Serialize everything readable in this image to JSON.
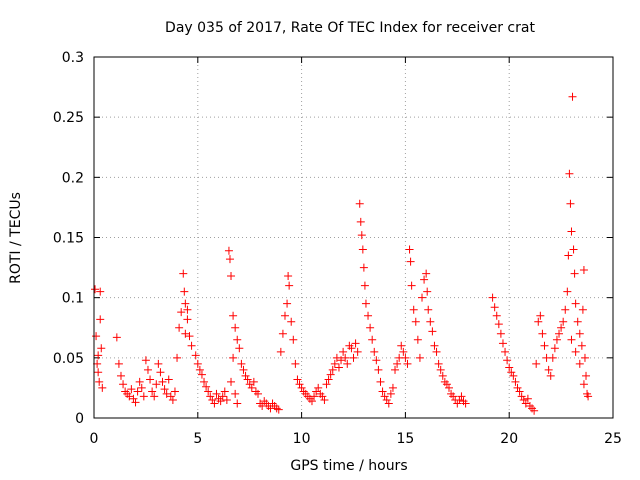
{
  "chart_data": {
    "type": "scatter",
    "title": "Day 035 of 2017, Rate Of TEC Index for receiver crat",
    "xlabel": "GPS time / hours",
    "ylabel": "ROTI / TECUs",
    "xlim": [
      0,
      25
    ],
    "ylim": [
      0,
      0.3
    ],
    "xticks": [
      0,
      5,
      10,
      15,
      20,
      25
    ],
    "xtick_labels": [
      "0",
      "5",
      "10",
      "15",
      "20",
      "25"
    ],
    "yticks": [
      0,
      0.05,
      0.1,
      0.15,
      0.2,
      0.25,
      0.3
    ],
    "ytick_labels": [
      "0",
      "0.05",
      "0.1",
      "0.15",
      "0.2",
      "0.25",
      "0.3"
    ],
    "grid": true,
    "marker": "+",
    "color": "#ff0000",
    "series": [
      {
        "name": "ROTI",
        "points": [
          [
            0.05,
            0.107
          ],
          [
            0.1,
            0.068
          ],
          [
            0.15,
            0.045
          ],
          [
            0.2,
            0.038
          ],
          [
            0.25,
            0.03
          ],
          [
            0.3,
            0.105
          ],
          [
            0.35,
            0.058
          ],
          [
            0.4,
            0.025
          ],
          [
            0.3,
            0.082
          ],
          [
            0.2,
            0.052
          ],
          [
            1.1,
            0.067
          ],
          [
            1.2,
            0.045
          ],
          [
            1.3,
            0.035
          ],
          [
            1.4,
            0.028
          ],
          [
            1.5,
            0.022
          ],
          [
            1.6,
            0.02
          ],
          [
            1.7,
            0.018
          ],
          [
            1.8,
            0.024
          ],
          [
            1.9,
            0.016
          ],
          [
            2.0,
            0.013
          ],
          [
            2.1,
            0.022
          ],
          [
            2.2,
            0.03
          ],
          [
            2.3,
            0.025
          ],
          [
            2.4,
            0.018
          ],
          [
            2.5,
            0.048
          ],
          [
            2.6,
            0.04
          ],
          [
            2.7,
            0.032
          ],
          [
            2.8,
            0.022
          ],
          [
            2.9,
            0.018
          ],
          [
            3.0,
            0.028
          ],
          [
            3.1,
            0.045
          ],
          [
            3.2,
            0.038
          ],
          [
            3.3,
            0.03
          ],
          [
            3.4,
            0.024
          ],
          [
            3.5,
            0.02
          ],
          [
            3.6,
            0.032
          ],
          [
            3.7,
            0.018
          ],
          [
            3.8,
            0.015
          ],
          [
            3.9,
            0.022
          ],
          [
            4.0,
            0.05
          ],
          [
            4.1,
            0.075
          ],
          [
            4.2,
            0.088
          ],
          [
            4.3,
            0.12
          ],
          [
            4.35,
            0.105
          ],
          [
            4.4,
            0.095
          ],
          [
            4.5,
            0.082
          ],
          [
            4.6,
            0.068
          ],
          [
            4.7,
            0.06
          ],
          [
            4.5,
            0.09
          ],
          [
            4.4,
            0.07
          ],
          [
            4.9,
            0.052
          ],
          [
            5.0,
            0.045
          ],
          [
            5.1,
            0.04
          ],
          [
            5.2,
            0.036
          ],
          [
            5.3,
            0.03
          ],
          [
            5.4,
            0.026
          ],
          [
            5.5,
            0.022
          ],
          [
            5.6,
            0.018
          ],
          [
            5.7,
            0.015
          ],
          [
            5.8,
            0.012
          ],
          [
            5.9,
            0.02
          ],
          [
            6.0,
            0.016
          ],
          [
            6.1,
            0.014
          ],
          [
            6.2,
            0.018
          ],
          [
            6.3,
            0.022
          ],
          [
            6.4,
            0.015
          ],
          [
            6.5,
            0.139
          ],
          [
            6.55,
            0.132
          ],
          [
            6.6,
            0.118
          ],
          [
            6.7,
            0.085
          ],
          [
            6.8,
            0.075
          ],
          [
            6.9,
            0.065
          ],
          [
            7.0,
            0.058
          ],
          [
            7.1,
            0.045
          ],
          [
            6.7,
            0.05
          ],
          [
            6.6,
            0.03
          ],
          [
            6.8,
            0.02
          ],
          [
            6.9,
            0.012
          ],
          [
            7.2,
            0.04
          ],
          [
            7.3,
            0.035
          ],
          [
            7.4,
            0.032
          ],
          [
            7.5,
            0.028
          ],
          [
            7.6,
            0.025
          ],
          [
            7.7,
            0.03
          ],
          [
            7.8,
            0.022
          ],
          [
            7.9,
            0.02
          ],
          [
            8.0,
            0.012
          ],
          [
            8.1,
            0.01
          ],
          [
            8.2,
            0.014
          ],
          [
            8.3,
            0.012
          ],
          [
            8.4,
            0.01
          ],
          [
            8.5,
            0.008
          ],
          [
            8.6,
            0.012
          ],
          [
            8.7,
            0.01
          ],
          [
            8.8,
            0.008
          ],
          [
            8.9,
            0.007
          ],
          [
            9.0,
            0.055
          ],
          [
            9.1,
            0.07
          ],
          [
            9.2,
            0.085
          ],
          [
            9.3,
            0.095
          ],
          [
            9.35,
            0.118
          ],
          [
            9.4,
            0.11
          ],
          [
            9.5,
            0.08
          ],
          [
            9.6,
            0.065
          ],
          [
            9.7,
            0.045
          ],
          [
            9.8,
            0.032
          ],
          [
            9.9,
            0.028
          ],
          [
            10.0,
            0.025
          ],
          [
            10.1,
            0.022
          ],
          [
            10.2,
            0.02
          ],
          [
            10.3,
            0.018
          ],
          [
            10.4,
            0.016
          ],
          [
            10.5,
            0.014
          ],
          [
            10.6,
            0.018
          ],
          [
            10.7,
            0.022
          ],
          [
            10.8,
            0.025
          ],
          [
            10.9,
            0.02
          ],
          [
            11.0,
            0.018
          ],
          [
            11.1,
            0.015
          ],
          [
            11.2,
            0.028
          ],
          [
            11.3,
            0.032
          ],
          [
            11.4,
            0.036
          ],
          [
            11.5,
            0.04
          ],
          [
            11.6,
            0.045
          ],
          [
            11.7,
            0.05
          ],
          [
            11.8,
            0.042
          ],
          [
            11.9,
            0.048
          ],
          [
            12.0,
            0.055
          ],
          [
            12.1,
            0.05
          ],
          [
            12.2,
            0.045
          ],
          [
            12.3,
            0.06
          ],
          [
            12.4,
            0.058
          ],
          [
            12.5,
            0.05
          ],
          [
            12.6,
            0.062
          ],
          [
            12.7,
            0.055
          ],
          [
            12.8,
            0.178
          ],
          [
            12.85,
            0.163
          ],
          [
            12.9,
            0.152
          ],
          [
            12.95,
            0.14
          ],
          [
            13.0,
            0.125
          ],
          [
            13.05,
            0.11
          ],
          [
            13.1,
            0.095
          ],
          [
            13.2,
            0.085
          ],
          [
            13.3,
            0.075
          ],
          [
            13.4,
            0.065
          ],
          [
            13.5,
            0.055
          ],
          [
            13.6,
            0.048
          ],
          [
            13.7,
            0.04
          ],
          [
            13.8,
            0.03
          ],
          [
            13.9,
            0.022
          ],
          [
            14.0,
            0.018
          ],
          [
            14.1,
            0.015
          ],
          [
            14.2,
            0.012
          ],
          [
            14.3,
            0.02
          ],
          [
            14.4,
            0.025
          ],
          [
            14.5,
            0.04
          ],
          [
            14.6,
            0.045
          ],
          [
            14.7,
            0.05
          ],
          [
            14.8,
            0.06
          ],
          [
            14.9,
            0.055
          ],
          [
            15.0,
            0.05
          ],
          [
            15.1,
            0.045
          ],
          [
            15.2,
            0.14
          ],
          [
            15.25,
            0.13
          ],
          [
            15.3,
            0.11
          ],
          [
            15.4,
            0.09
          ],
          [
            15.5,
            0.08
          ],
          [
            15.6,
            0.065
          ],
          [
            15.7,
            0.05
          ],
          [
            15.8,
            0.1
          ],
          [
            15.9,
            0.115
          ],
          [
            16.0,
            0.12
          ],
          [
            16.05,
            0.105
          ],
          [
            16.1,
            0.09
          ],
          [
            16.2,
            0.08
          ],
          [
            16.3,
            0.072
          ],
          [
            16.4,
            0.06
          ],
          [
            16.5,
            0.055
          ],
          [
            16.6,
            0.045
          ],
          [
            16.7,
            0.04
          ],
          [
            16.8,
            0.035
          ],
          [
            16.9,
            0.03
          ],
          [
            17.0,
            0.028
          ],
          [
            17.1,
            0.025
          ],
          [
            17.2,
            0.02
          ],
          [
            17.3,
            0.018
          ],
          [
            17.4,
            0.015
          ],
          [
            17.5,
            0.012
          ],
          [
            17.6,
            0.015
          ],
          [
            17.7,
            0.018
          ],
          [
            17.8,
            0.014
          ],
          [
            17.9,
            0.012
          ],
          [
            19.2,
            0.1
          ],
          [
            19.3,
            0.092
          ],
          [
            19.4,
            0.085
          ],
          [
            19.5,
            0.078
          ],
          [
            19.6,
            0.07
          ],
          [
            19.7,
            0.062
          ],
          [
            19.8,
            0.055
          ],
          [
            19.9,
            0.048
          ],
          [
            20.0,
            0.042
          ],
          [
            20.1,
            0.038
          ],
          [
            20.2,
            0.035
          ],
          [
            20.3,
            0.03
          ],
          [
            20.4,
            0.025
          ],
          [
            20.5,
            0.022
          ],
          [
            20.6,
            0.018
          ],
          [
            20.7,
            0.015
          ],
          [
            20.8,
            0.012
          ],
          [
            20.9,
            0.016
          ],
          [
            21.0,
            0.01
          ],
          [
            21.1,
            0.008
          ],
          [
            21.2,
            0.006
          ],
          [
            21.3,
            0.045
          ],
          [
            21.4,
            0.08
          ],
          [
            21.5,
            0.085
          ],
          [
            21.6,
            0.07
          ],
          [
            21.7,
            0.06
          ],
          [
            21.8,
            0.05
          ],
          [
            21.9,
            0.04
          ],
          [
            22.0,
            0.035
          ],
          [
            22.1,
            0.05
          ],
          [
            22.2,
            0.058
          ],
          [
            22.3,
            0.065
          ],
          [
            22.4,
            0.07
          ],
          [
            22.5,
            0.075
          ],
          [
            22.6,
            0.08
          ],
          [
            22.7,
            0.09
          ],
          [
            22.8,
            0.105
          ],
          [
            22.85,
            0.135
          ],
          [
            22.9,
            0.203
          ],
          [
            22.95,
            0.178
          ],
          [
            23.0,
            0.155
          ],
          [
            23.05,
            0.267
          ],
          [
            23.1,
            0.14
          ],
          [
            23.15,
            0.12
          ],
          [
            23.2,
            0.095
          ],
          [
            23.3,
            0.08
          ],
          [
            23.4,
            0.07
          ],
          [
            23.5,
            0.06
          ],
          [
            23.55,
            0.09
          ],
          [
            23.6,
            0.123
          ],
          [
            23.65,
            0.05
          ],
          [
            23.7,
            0.035
          ],
          [
            23.75,
            0.02
          ],
          [
            23.8,
            0.018
          ],
          [
            23.6,
            0.028
          ],
          [
            23.4,
            0.045
          ],
          [
            23.2,
            0.055
          ],
          [
            23.0,
            0.065
          ]
        ]
      }
    ]
  }
}
